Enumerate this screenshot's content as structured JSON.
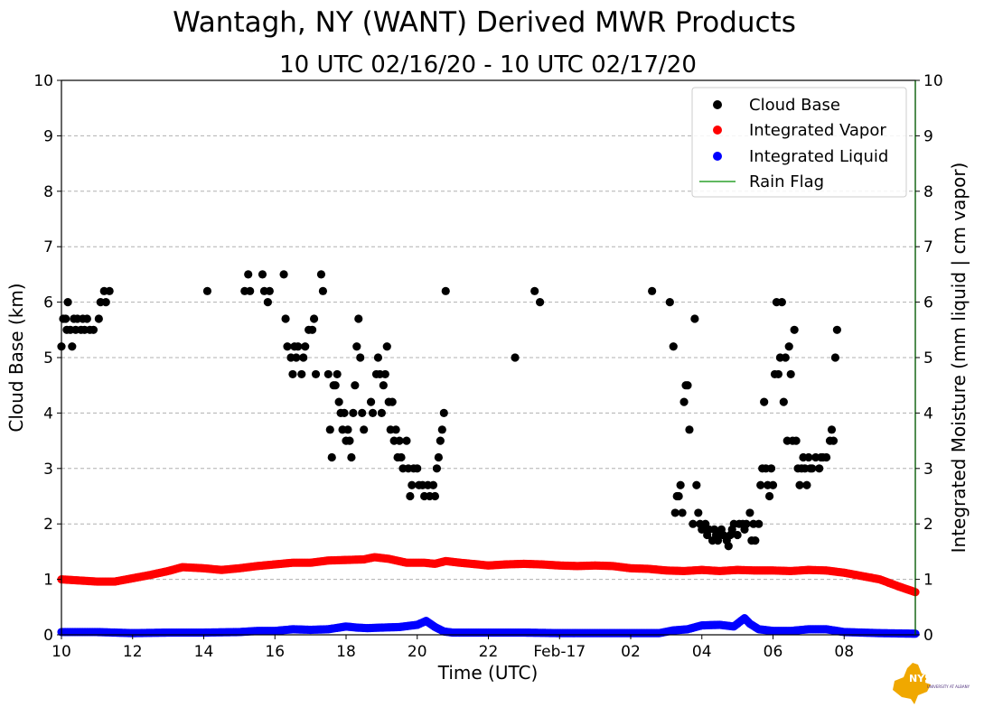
{
  "chart_data": {
    "type": "scatter",
    "title": "Wantagh, NY (WANT) Derived MWR Products",
    "subtitle": "10 UTC 02/16/20 - 10 UTC 02/17/20",
    "xlabel": "Time (UTC)",
    "ylabel_left": "Cloud Base (km)",
    "ylabel_right": "Integrated Moisture (mm liquid | cm vapor)",
    "xlim_hours": [
      0,
      24
    ],
    "ylim": [
      0,
      10
    ],
    "grid": "horizontal dashed",
    "legend_position": "top-right",
    "x_ticks": [
      {
        "hour": 0,
        "label": "10"
      },
      {
        "hour": 2,
        "label": "12"
      },
      {
        "hour": 4,
        "label": "14"
      },
      {
        "hour": 6,
        "label": "16"
      },
      {
        "hour": 8,
        "label": "18"
      },
      {
        "hour": 10,
        "label": "20"
      },
      {
        "hour": 12,
        "label": "22"
      },
      {
        "hour": 14,
        "label": "Feb-17"
      },
      {
        "hour": 16,
        "label": "02"
      },
      {
        "hour": 18,
        "label": "04"
      },
      {
        "hour": 20,
        "label": "06"
      },
      {
        "hour": 22,
        "label": "08"
      }
    ],
    "y_ticks": [
      "0",
      "1",
      "2",
      "3",
      "4",
      "5",
      "6",
      "7",
      "8",
      "9",
      "10"
    ],
    "legend": [
      "Cloud Base",
      "Integrated Vapor",
      "Integrated Liquid",
      "Rain Flag"
    ],
    "colors": {
      "cloud_base": "#000000",
      "integrated_vapor": "#ff0000",
      "integrated_liquid": "#0000ff",
      "rain_flag": "#2ca02c",
      "grid": "#b0b0b0",
      "right_axis": "#006400"
    },
    "series": [
      {
        "name": "Cloud Base",
        "kind": "scatter",
        "points": [
          [
            0.0,
            5.2
          ],
          [
            0.05,
            5.7
          ],
          [
            0.12,
            5.7
          ],
          [
            0.18,
            6.0
          ],
          [
            0.15,
            5.5
          ],
          [
            0.25,
            5.5
          ],
          [
            0.3,
            5.2
          ],
          [
            0.35,
            5.7
          ],
          [
            0.4,
            5.5
          ],
          [
            0.45,
            5.7
          ],
          [
            0.55,
            5.5
          ],
          [
            0.6,
            5.7
          ],
          [
            0.65,
            5.5
          ],
          [
            0.72,
            5.7
          ],
          [
            0.8,
            5.5
          ],
          [
            0.9,
            5.5
          ],
          [
            1.05,
            5.7
          ],
          [
            1.1,
            6.0
          ],
          [
            1.2,
            6.2
          ],
          [
            1.25,
            6.0
          ],
          [
            1.35,
            6.2
          ],
          [
            4.1,
            6.2
          ],
          [
            5.15,
            6.2
          ],
          [
            5.25,
            6.5
          ],
          [
            5.3,
            6.2
          ],
          [
            5.65,
            6.5
          ],
          [
            5.7,
            6.2
          ],
          [
            5.8,
            6.0
          ],
          [
            5.85,
            6.2
          ],
          [
            6.25,
            6.5
          ],
          [
            6.3,
            5.7
          ],
          [
            6.35,
            5.2
          ],
          [
            6.45,
            5.0
          ],
          [
            6.5,
            4.7
          ],
          [
            6.55,
            5.2
          ],
          [
            6.6,
            5.0
          ],
          [
            6.65,
            5.2
          ],
          [
            6.75,
            4.7
          ],
          [
            6.8,
            5.0
          ],
          [
            6.85,
            5.2
          ],
          [
            6.95,
            5.5
          ],
          [
            7.05,
            5.5
          ],
          [
            7.1,
            5.7
          ],
          [
            7.15,
            4.7
          ],
          [
            7.3,
            6.5
          ],
          [
            7.35,
            6.2
          ],
          [
            7.5,
            4.7
          ],
          [
            7.55,
            3.7
          ],
          [
            7.6,
            3.2
          ],
          [
            7.65,
            4.5
          ],
          [
            7.7,
            4.5
          ],
          [
            7.75,
            4.7
          ],
          [
            7.8,
            4.2
          ],
          [
            7.85,
            4.0
          ],
          [
            7.9,
            3.7
          ],
          [
            7.95,
            4.0
          ],
          [
            8.0,
            3.5
          ],
          [
            8.05,
            3.7
          ],
          [
            8.1,
            3.5
          ],
          [
            8.15,
            3.2
          ],
          [
            8.2,
            4.0
          ],
          [
            8.25,
            4.5
          ],
          [
            8.3,
            5.2
          ],
          [
            8.35,
            5.7
          ],
          [
            8.4,
            5.0
          ],
          [
            8.45,
            4.0
          ],
          [
            8.5,
            3.7
          ],
          [
            8.7,
            4.2
          ],
          [
            8.75,
            4.0
          ],
          [
            8.85,
            4.7
          ],
          [
            8.9,
            5.0
          ],
          [
            8.95,
            4.7
          ],
          [
            9.0,
            4.0
          ],
          [
            9.05,
            4.5
          ],
          [
            9.1,
            4.7
          ],
          [
            9.15,
            5.2
          ],
          [
            9.2,
            4.2
          ],
          [
            9.3,
            4.2
          ],
          [
            9.25,
            3.7
          ],
          [
            9.35,
            3.5
          ],
          [
            9.4,
            3.7
          ],
          [
            9.45,
            3.2
          ],
          [
            9.5,
            3.5
          ],
          [
            9.55,
            3.2
          ],
          [
            9.6,
            3.0
          ],
          [
            9.7,
            3.5
          ],
          [
            9.75,
            3.0
          ],
          [
            9.8,
            2.5
          ],
          [
            9.85,
            2.7
          ],
          [
            9.9,
            3.0
          ],
          [
            10.0,
            3.0
          ],
          [
            10.05,
            2.7
          ],
          [
            10.15,
            2.7
          ],
          [
            10.2,
            2.5
          ],
          [
            10.3,
            2.7
          ],
          [
            10.35,
            2.5
          ],
          [
            10.45,
            2.7
          ],
          [
            10.5,
            2.5
          ],
          [
            10.55,
            3.0
          ],
          [
            10.6,
            3.2
          ],
          [
            10.65,
            3.5
          ],
          [
            10.7,
            3.7
          ],
          [
            10.75,
            4.0
          ],
          [
            10.8,
            6.2
          ],
          [
            12.75,
            5.0
          ],
          [
            13.3,
            6.2
          ],
          [
            13.45,
            6.0
          ],
          [
            16.6,
            6.2
          ],
          [
            17.1,
            6.0
          ],
          [
            17.2,
            5.2
          ],
          [
            17.25,
            2.2
          ],
          [
            17.3,
            2.5
          ],
          [
            17.35,
            2.5
          ],
          [
            17.4,
            2.7
          ],
          [
            17.45,
            2.2
          ],
          [
            17.5,
            4.2
          ],
          [
            17.55,
            4.5
          ],
          [
            17.6,
            4.5
          ],
          [
            17.65,
            3.7
          ],
          [
            17.75,
            2.0
          ],
          [
            17.8,
            5.7
          ],
          [
            17.85,
            2.7
          ],
          [
            17.9,
            2.2
          ],
          [
            17.95,
            2.0
          ],
          [
            18.0,
            1.9
          ],
          [
            18.1,
            2.0
          ],
          [
            18.15,
            1.8
          ],
          [
            18.2,
            1.9
          ],
          [
            18.3,
            1.7
          ],
          [
            18.35,
            1.9
          ],
          [
            18.4,
            1.8
          ],
          [
            18.45,
            1.7
          ],
          [
            18.5,
            1.8
          ],
          [
            18.55,
            1.9
          ],
          [
            18.6,
            1.8
          ],
          [
            18.7,
            1.7
          ],
          [
            18.75,
            1.6
          ],
          [
            18.8,
            1.8
          ],
          [
            18.85,
            1.9
          ],
          [
            18.9,
            2.0
          ],
          [
            19.0,
            1.8
          ],
          [
            19.05,
            2.0
          ],
          [
            19.15,
            2.0
          ],
          [
            19.2,
            1.9
          ],
          [
            19.25,
            2.0
          ],
          [
            19.35,
            2.2
          ],
          [
            19.4,
            1.7
          ],
          [
            19.45,
            2.0
          ],
          [
            19.5,
            1.7
          ],
          [
            19.6,
            2.0
          ],
          [
            19.65,
            2.7
          ],
          [
            19.7,
            3.0
          ],
          [
            19.75,
            4.2
          ],
          [
            19.8,
            3.0
          ],
          [
            19.85,
            2.7
          ],
          [
            19.9,
            2.5
          ],
          [
            19.95,
            3.0
          ],
          [
            20.0,
            2.7
          ],
          [
            20.05,
            4.7
          ],
          [
            20.1,
            6.0
          ],
          [
            20.15,
            4.7
          ],
          [
            20.2,
            5.0
          ],
          [
            20.25,
            6.0
          ],
          [
            20.3,
            4.2
          ],
          [
            20.35,
            5.0
          ],
          [
            20.4,
            3.5
          ],
          [
            20.45,
            5.2
          ],
          [
            20.5,
            4.7
          ],
          [
            20.55,
            3.5
          ],
          [
            20.6,
            5.5
          ],
          [
            20.65,
            3.5
          ],
          [
            20.7,
            3.0
          ],
          [
            20.75,
            2.7
          ],
          [
            20.8,
            3.0
          ],
          [
            20.85,
            3.2
          ],
          [
            20.9,
            3.0
          ],
          [
            20.95,
            2.7
          ],
          [
            21.0,
            3.2
          ],
          [
            21.05,
            3.0
          ],
          [
            21.1,
            3.0
          ],
          [
            21.2,
            3.2
          ],
          [
            21.3,
            3.0
          ],
          [
            21.35,
            3.2
          ],
          [
            21.4,
            3.2
          ],
          [
            21.5,
            3.2
          ],
          [
            21.6,
            3.5
          ],
          [
            21.65,
            3.7
          ],
          [
            21.7,
            3.5
          ],
          [
            21.75,
            5.0
          ],
          [
            21.8,
            5.5
          ]
        ]
      },
      {
        "name": "Integrated Vapor",
        "kind": "dense-scatter",
        "points": [
          [
            0,
            1.0
          ],
          [
            0.5,
            0.98
          ],
          [
            1.0,
            0.96
          ],
          [
            1.5,
            0.96
          ],
          [
            2.0,
            1.02
          ],
          [
            2.5,
            1.08
          ],
          [
            3.0,
            1.15
          ],
          [
            3.4,
            1.22
          ],
          [
            4.0,
            1.2
          ],
          [
            4.5,
            1.17
          ],
          [
            5.0,
            1.2
          ],
          [
            5.5,
            1.24
          ],
          [
            6.0,
            1.27
          ],
          [
            6.5,
            1.3
          ],
          [
            7.0,
            1.3
          ],
          [
            7.5,
            1.34
          ],
          [
            8.0,
            1.35
          ],
          [
            8.5,
            1.36
          ],
          [
            8.8,
            1.4
          ],
          [
            9.2,
            1.37
          ],
          [
            9.7,
            1.3
          ],
          [
            10.2,
            1.3
          ],
          [
            10.5,
            1.28
          ],
          [
            10.8,
            1.33
          ],
          [
            11.2,
            1.3
          ],
          [
            11.7,
            1.27
          ],
          [
            12.0,
            1.25
          ],
          [
            12.5,
            1.27
          ],
          [
            13.0,
            1.28
          ],
          [
            13.5,
            1.27
          ],
          [
            14.0,
            1.25
          ],
          [
            14.5,
            1.24
          ],
          [
            15.0,
            1.25
          ],
          [
            15.5,
            1.24
          ],
          [
            16.0,
            1.2
          ],
          [
            16.5,
            1.19
          ],
          [
            17.0,
            1.16
          ],
          [
            17.5,
            1.15
          ],
          [
            18.0,
            1.17
          ],
          [
            18.5,
            1.15
          ],
          [
            19.0,
            1.17
          ],
          [
            19.5,
            1.16
          ],
          [
            20.0,
            1.16
          ],
          [
            20.5,
            1.15
          ],
          [
            21.0,
            1.17
          ],
          [
            21.5,
            1.16
          ],
          [
            22.0,
            1.12
          ],
          [
            22.5,
            1.06
          ],
          [
            23.0,
            1.0
          ],
          [
            23.5,
            0.88
          ],
          [
            24,
            0.77
          ]
        ]
      },
      {
        "name": "Integrated Liquid",
        "kind": "dense-scatter",
        "points": [
          [
            0,
            0.05
          ],
          [
            1.0,
            0.05
          ],
          [
            2.0,
            0.03
          ],
          [
            3.0,
            0.04
          ],
          [
            4.0,
            0.04
          ],
          [
            5.0,
            0.05
          ],
          [
            5.5,
            0.07
          ],
          [
            6.0,
            0.07
          ],
          [
            6.5,
            0.1
          ],
          [
            7.0,
            0.09
          ],
          [
            7.5,
            0.1
          ],
          [
            8.0,
            0.15
          ],
          [
            8.3,
            0.13
          ],
          [
            8.6,
            0.12
          ],
          [
            9.0,
            0.13
          ],
          [
            9.5,
            0.14
          ],
          [
            10.0,
            0.18
          ],
          [
            10.25,
            0.25
          ],
          [
            10.5,
            0.14
          ],
          [
            10.75,
            0.06
          ],
          [
            11.0,
            0.04
          ],
          [
            12.0,
            0.04
          ],
          [
            13.0,
            0.04
          ],
          [
            14.0,
            0.03
          ],
          [
            15.0,
            0.03
          ],
          [
            16.0,
            0.03
          ],
          [
            16.8,
            0.03
          ],
          [
            17.2,
            0.08
          ],
          [
            17.6,
            0.1
          ],
          [
            18.0,
            0.17
          ],
          [
            18.5,
            0.18
          ],
          [
            18.9,
            0.15
          ],
          [
            19.2,
            0.3
          ],
          [
            19.35,
            0.2
          ],
          [
            19.6,
            0.1
          ],
          [
            20.0,
            0.07
          ],
          [
            20.5,
            0.07
          ],
          [
            21.0,
            0.1
          ],
          [
            21.5,
            0.1
          ],
          [
            22.0,
            0.05
          ],
          [
            23.0,
            0.03
          ],
          [
            24,
            0.02
          ]
        ]
      }
    ]
  },
  "logo": {
    "text_top": "NYS Mesonet",
    "text_sub": "UNIVERSITY AT ALBANY"
  }
}
